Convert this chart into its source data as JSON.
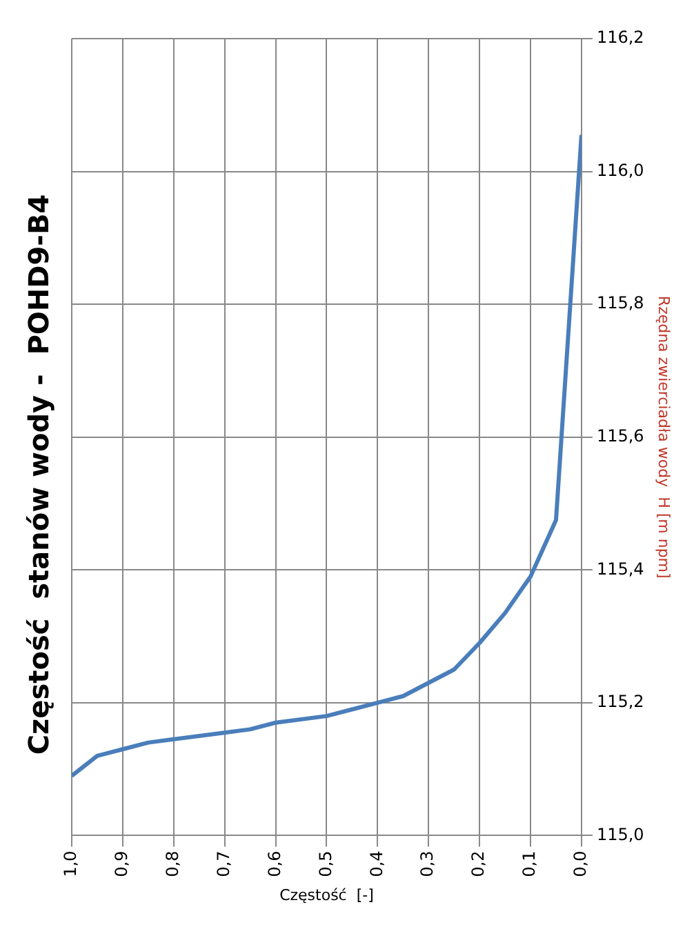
{
  "chart_data": {
    "type": "line",
    "title": "Częstość  stanów wody -  POHD9-B4",
    "xlabel": "Częstość  [-]",
    "ylabel": "Rzędna zwierciadła wody  H [m npm]",
    "x": [
      1.0,
      0.95,
      0.9,
      0.85,
      0.8,
      0.7,
      0.65,
      0.6,
      0.5,
      0.45,
      0.4,
      0.35,
      0.3,
      0.25,
      0.2,
      0.15,
      0.1,
      0.05,
      0.0
    ],
    "series": [
      {
        "color": "#4a7ebb",
        "values": [
          115.09,
          115.12,
          115.13,
          115.14,
          115.145,
          115.155,
          115.16,
          115.17,
          115.18,
          115.19,
          115.2,
          115.21,
          115.23,
          115.25,
          115.29,
          115.335,
          115.39,
          115.475,
          116.055
        ]
      }
    ],
    "xlim": [
      1.0,
      0.0
    ],
    "xticks": [
      {
        "value": 1.0,
        "label": "1,0"
      },
      {
        "value": 0.9,
        "label": "0,9"
      },
      {
        "value": 0.8,
        "label": "0,8"
      },
      {
        "value": 0.7,
        "label": "0,7"
      },
      {
        "value": 0.6,
        "label": "0,6"
      },
      {
        "value": 0.5,
        "label": "0,5"
      },
      {
        "value": 0.4,
        "label": "0,4"
      },
      {
        "value": 0.3,
        "label": "0,3"
      },
      {
        "value": 0.2,
        "label": "0,2"
      },
      {
        "value": 0.1,
        "label": "0,1"
      },
      {
        "value": 0.0,
        "label": "0,0"
      }
    ],
    "ylim": [
      115.0,
      116.2
    ],
    "yticks": [
      {
        "value": 115.0,
        "label": "115,0"
      },
      {
        "value": 115.2,
        "label": "115,2"
      },
      {
        "value": 115.4,
        "label": "115,4"
      },
      {
        "value": 115.6,
        "label": "115,6"
      },
      {
        "value": 115.8,
        "label": "115,8"
      },
      {
        "value": 116.0,
        "label": "116,0"
      },
      {
        "value": 116.2,
        "label": "116,2"
      }
    ],
    "grid": true,
    "legend": false,
    "marker": "none",
    "line_style": "solid"
  }
}
